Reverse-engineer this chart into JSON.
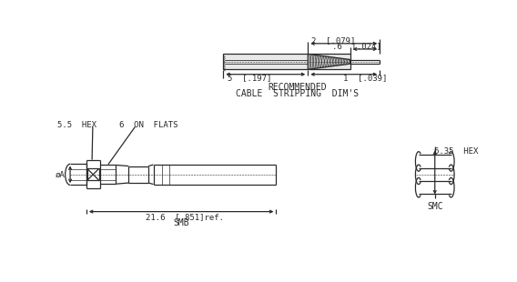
{
  "bg_color": "#ffffff",
  "line_color": "#2a2a2a",
  "dim_2_079": "2  [.079]",
  "dim_06_024": ".6  [.024]",
  "dim_5_197": "5  [.197]",
  "dim_1_039": "1  [.039]",
  "dim_216_851": "21.6  [.851]ref.",
  "cable_strip_label1": "RECOMMENDED",
  "cable_strip_label2": "CABLE  STRIPPING  DIM'S",
  "label_55hex": "5.5  HEX",
  "label_6flats": "6  ON  FLATS",
  "label_635hex": "6.35  HEX",
  "label_phiA": "øA",
  "smb_label": "SMB",
  "smc_label": "SMC"
}
